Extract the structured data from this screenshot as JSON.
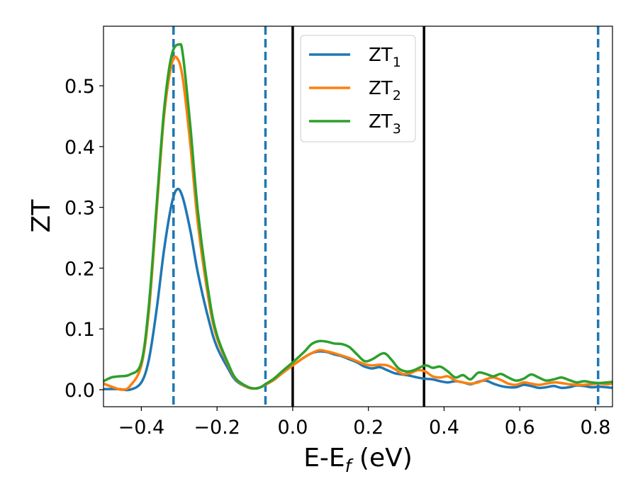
{
  "chart_data": {
    "type": "line",
    "xlabel": "E-E_f (eV)",
    "ylabel": "ZT",
    "xlim": [
      -0.5,
      0.845
    ],
    "ylim": [
      -0.028,
      0.598
    ],
    "x_ticks": [
      -0.4,
      -0.2,
      0.0,
      0.2,
      0.4,
      0.6,
      0.8
    ],
    "x_tick_labels": [
      "−0.4",
      "−0.2",
      "0.0",
      "0.2",
      "0.4",
      "0.6",
      "0.8"
    ],
    "y_ticks": [
      0.0,
      0.1,
      0.2,
      0.3,
      0.4,
      0.5
    ],
    "y_tick_labels": [
      "0.0",
      "0.1",
      "0.2",
      "0.3",
      "0.4",
      "0.5"
    ],
    "grid": false,
    "legend_position": "top-center",
    "vlines_dashed": {
      "x": [
        -0.315,
        -0.072,
        0.807
      ],
      "color": "#1f77b4"
    },
    "vlines_solid": {
      "x": [
        0.0,
        0.347
      ],
      "color": "#000000"
    },
    "series": [
      {
        "name": "ZT1",
        "base": "ZT",
        "sub": "1",
        "color": "#1f77b4",
        "x": [
          -0.5,
          -0.46,
          -0.43,
          -0.4,
          -0.38,
          -0.36,
          -0.34,
          -0.32,
          -0.305,
          -0.29,
          -0.27,
          -0.25,
          -0.22,
          -0.2,
          -0.17,
          -0.15,
          -0.12,
          -0.1,
          -0.085,
          -0.07,
          -0.05,
          -0.03,
          0.0,
          0.03,
          0.05,
          0.07,
          0.09,
          0.11,
          0.13,
          0.15,
          0.17,
          0.19,
          0.21,
          0.23,
          0.25,
          0.27,
          0.29,
          0.31,
          0.33,
          0.35,
          0.37,
          0.39,
          0.41,
          0.43,
          0.45,
          0.47,
          0.49,
          0.51,
          0.53,
          0.55,
          0.57,
          0.59,
          0.61,
          0.63,
          0.65,
          0.67,
          0.69,
          0.71,
          0.73,
          0.75,
          0.77,
          0.79,
          0.81,
          0.83,
          0.845
        ],
        "y": [
          0.001,
          0.001,
          0.0,
          0.012,
          0.05,
          0.13,
          0.23,
          0.305,
          0.33,
          0.315,
          0.26,
          0.19,
          0.11,
          0.07,
          0.034,
          0.015,
          0.004,
          0.002,
          0.004,
          0.009,
          0.016,
          0.026,
          0.04,
          0.053,
          0.06,
          0.063,
          0.062,
          0.058,
          0.055,
          0.05,
          0.045,
          0.038,
          0.035,
          0.037,
          0.032,
          0.027,
          0.025,
          0.023,
          0.02,
          0.018,
          0.017,
          0.014,
          0.012,
          0.014,
          0.012,
          0.009,
          0.013,
          0.015,
          0.01,
          0.006,
          0.004,
          0.004,
          0.008,
          0.006,
          0.003,
          0.004,
          0.006,
          0.003,
          0.004,
          0.007,
          0.006,
          0.004,
          0.005,
          0.004,
          0.003
        ]
      },
      {
        "name": "ZT2",
        "base": "ZT",
        "sub": "2",
        "color": "#ff7f0e",
        "x": [
          -0.5,
          -0.47,
          -0.45,
          -0.43,
          -0.4,
          -0.38,
          -0.36,
          -0.34,
          -0.32,
          -0.305,
          -0.29,
          -0.27,
          -0.25,
          -0.22,
          -0.2,
          -0.17,
          -0.15,
          -0.12,
          -0.1,
          -0.085,
          -0.07,
          -0.05,
          -0.03,
          0.0,
          0.03,
          0.05,
          0.07,
          0.09,
          0.11,
          0.13,
          0.15,
          0.17,
          0.19,
          0.21,
          0.23,
          0.25,
          0.27,
          0.29,
          0.31,
          0.33,
          0.35,
          0.37,
          0.39,
          0.41,
          0.43,
          0.45,
          0.47,
          0.49,
          0.51,
          0.53,
          0.55,
          0.57,
          0.59,
          0.61,
          0.63,
          0.65,
          0.67,
          0.69,
          0.71,
          0.73,
          0.75,
          0.77,
          0.79,
          0.81,
          0.83,
          0.845
        ],
        "y": [
          0.01,
          0.003,
          0.0,
          0.006,
          0.04,
          0.13,
          0.29,
          0.45,
          0.535,
          0.545,
          0.51,
          0.4,
          0.27,
          0.14,
          0.085,
          0.04,
          0.017,
          0.004,
          0.002,
          0.004,
          0.009,
          0.016,
          0.026,
          0.04,
          0.053,
          0.06,
          0.065,
          0.063,
          0.06,
          0.056,
          0.052,
          0.047,
          0.042,
          0.04,
          0.041,
          0.04,
          0.034,
          0.026,
          0.027,
          0.032,
          0.03,
          0.022,
          0.02,
          0.022,
          0.015,
          0.012,
          0.01,
          0.012,
          0.017,
          0.02,
          0.016,
          0.01,
          0.008,
          0.012,
          0.01,
          0.008,
          0.01,
          0.012,
          0.011,
          0.009,
          0.008,
          0.008,
          0.009,
          0.01,
          0.009,
          0.01
        ]
      },
      {
        "name": "ZT3",
        "base": "ZT",
        "sub": "3",
        "color": "#2ca02c",
        "x": [
          -0.5,
          -0.48,
          -0.46,
          -0.43,
          -0.4,
          -0.38,
          -0.36,
          -0.34,
          -0.32,
          -0.3,
          -0.29,
          -0.27,
          -0.25,
          -0.22,
          -0.2,
          -0.17,
          -0.15,
          -0.12,
          -0.1,
          -0.085,
          -0.07,
          -0.05,
          -0.03,
          0.0,
          0.03,
          0.05,
          0.07,
          0.09,
          0.11,
          0.13,
          0.15,
          0.17,
          0.19,
          0.21,
          0.24,
          0.26,
          0.28,
          0.3,
          0.32,
          0.35,
          0.37,
          0.39,
          0.41,
          0.43,
          0.45,
          0.47,
          0.49,
          0.51,
          0.53,
          0.55,
          0.57,
          0.59,
          0.61,
          0.63,
          0.65,
          0.67,
          0.69,
          0.71,
          0.73,
          0.75,
          0.77,
          0.79,
          0.81,
          0.83,
          0.845
        ],
        "y": [
          0.014,
          0.02,
          0.022,
          0.025,
          0.045,
          0.14,
          0.3,
          0.46,
          0.55,
          0.568,
          0.55,
          0.43,
          0.29,
          0.15,
          0.09,
          0.042,
          0.018,
          0.005,
          0.002,
          0.004,
          0.01,
          0.018,
          0.029,
          0.045,
          0.062,
          0.075,
          0.08,
          0.079,
          0.076,
          0.075,
          0.07,
          0.058,
          0.047,
          0.05,
          0.06,
          0.05,
          0.035,
          0.03,
          0.032,
          0.04,
          0.036,
          0.038,
          0.03,
          0.02,
          0.024,
          0.017,
          0.028,
          0.026,
          0.022,
          0.026,
          0.02,
          0.015,
          0.018,
          0.025,
          0.02,
          0.015,
          0.017,
          0.02,
          0.016,
          0.012,
          0.014,
          0.012,
          0.011,
          0.012,
          0.013
        ]
      }
    ]
  }
}
